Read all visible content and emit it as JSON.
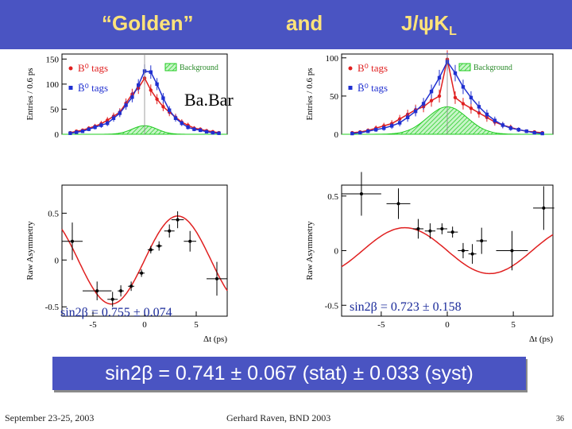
{
  "header": {
    "golden": "“Golden”",
    "and": "and",
    "jpsikl_main": "J/ψK",
    "jpsikl_sub": "L"
  },
  "babar_label": "Ba.Bar",
  "result": "sin2β = 0.741 ± 0.067 (stat) ± 0.033 (syst)",
  "footer": {
    "date": "September 23-25, 2003",
    "author": "Gerhard Raven, BND 2003",
    "page": "36"
  },
  "colors": {
    "header_bg": "#4a54c2",
    "header_text": "#ffe37a",
    "b0": "#e02020",
    "b0bar": "#2030d0",
    "background": "#22cc22"
  },
  "chart_data": [
    {
      "type": "scatter",
      "name": "golden-entries",
      "xlabel": "Δt (ps)",
      "ylabel": "Entries / 0.6 ps",
      "xlim": [
        -8,
        8
      ],
      "ylim": [
        0,
        160
      ],
      "yticks": [
        0,
        50,
        100,
        150
      ],
      "legend": {
        "b0": "B⁰ tags",
        "b0bar": "B̄⁰ tags",
        "background": "Background"
      },
      "series": [
        {
          "name": "B0 tags",
          "x": [
            -7.2,
            -6.6,
            -6.0,
            -5.4,
            -4.8,
            -4.2,
            -3.6,
            -3.0,
            -2.4,
            -1.8,
            -1.2,
            -0.6,
            0.0,
            0.6,
            1.2,
            1.8,
            2.4,
            3.0,
            3.6,
            4.2,
            4.8,
            5.4,
            6.0,
            6.6,
            7.2
          ],
          "y": [
            3,
            6,
            8,
            12,
            16,
            21,
            28,
            36,
            44,
            62,
            80,
            92,
            112,
            88,
            70,
            55,
            44,
            34,
            24,
            18,
            12,
            10,
            7,
            5,
            3
          ]
        },
        {
          "name": "B0bar tags",
          "x": [
            -7.2,
            -6.6,
            -6.0,
            -5.4,
            -4.8,
            -4.2,
            -3.6,
            -3.0,
            -2.4,
            -1.8,
            -1.2,
            -0.6,
            0.0,
            0.6,
            1.2,
            1.8,
            2.4,
            3.0,
            3.6,
            4.2,
            4.8,
            5.4,
            6.0,
            6.6,
            7.2
          ],
          "y": [
            2,
            4,
            6,
            10,
            14,
            18,
            22,
            32,
            42,
            58,
            74,
            98,
            126,
            124,
            100,
            72,
            48,
            32,
            22,
            14,
            10,
            8,
            5,
            3,
            2
          ]
        },
        {
          "name": "Background",
          "peak": 17,
          "width": 1.2
        }
      ]
    },
    {
      "type": "scatter",
      "name": "golden-asymmetry",
      "xlabel": "Δt (ps)",
      "ylabel": "Raw Asymmetry",
      "xlim": [
        -8,
        8
      ],
      "ylim": [
        -0.6,
        0.8
      ],
      "xticks": [
        -5,
        0,
        5
      ],
      "yticks": [
        -0.5,
        0,
        0.5
      ],
      "points": [
        {
          "x": -7.0,
          "y": 0.2,
          "xerr": 1.0,
          "yerr": 0.2
        },
        {
          "x": -4.6,
          "y": -0.33,
          "xerr": 1.4,
          "yerr": 0.1
        },
        {
          "x": -3.1,
          "y": -0.42,
          "xerr": 0.5,
          "yerr": 0.08
        },
        {
          "x": -2.3,
          "y": -0.33,
          "xerr": 0.3,
          "yerr": 0.06
        },
        {
          "x": -1.3,
          "y": -0.28,
          "xerr": 0.3,
          "yerr": 0.05
        },
        {
          "x": -0.3,
          "y": -0.14,
          "xerr": 0.3,
          "yerr": 0.04
        },
        {
          "x": 0.6,
          "y": 0.11,
          "xerr": 0.3,
          "yerr": 0.04
        },
        {
          "x": 1.4,
          "y": 0.15,
          "xerr": 0.3,
          "yerr": 0.05
        },
        {
          "x": 2.4,
          "y": 0.31,
          "xerr": 0.5,
          "yerr": 0.07
        },
        {
          "x": 3.2,
          "y": 0.43,
          "xerr": 0.6,
          "yerr": 0.09
        },
        {
          "x": 4.4,
          "y": 0.2,
          "xerr": 0.6,
          "yerr": 0.11
        },
        {
          "x": 7.0,
          "y": -0.2,
          "xerr": 1.0,
          "yerr": 0.18
        }
      ],
      "fit": {
        "amplitude": 0.47,
        "omega": 0.489
      },
      "annotation": "sin2β = 0.755 ± 0.074"
    },
    {
      "type": "scatter",
      "name": "jpsikl-entries",
      "xlabel": "Δt (ps)",
      "ylabel": "Entries / 0.6 ps",
      "xlim": [
        -8,
        8
      ],
      "ylim": [
        0,
        105
      ],
      "yticks": [
        0,
        50,
        100
      ],
      "legend": {
        "b0": "B⁰ tags",
        "b0bar": "B̄⁰ tags",
        "background": "Background"
      },
      "series": [
        {
          "name": "B0 tags",
          "x": [
            -7.2,
            -6.6,
            -6.0,
            -5.4,
            -4.8,
            -4.2,
            -3.6,
            -3.0,
            -2.4,
            -1.8,
            -1.2,
            -0.6,
            0.0,
            0.6,
            1.2,
            1.8,
            2.4,
            3.0,
            3.6,
            4.2,
            4.8,
            5.4,
            6.0,
            6.6,
            7.2
          ],
          "y": [
            2,
            3,
            5,
            8,
            11,
            14,
            20,
            26,
            32,
            36,
            44,
            50,
            98,
            48,
            40,
            34,
            28,
            22,
            16,
            12,
            9,
            6,
            4,
            3,
            2
          ]
        },
        {
          "name": "B0bar tags",
          "x": [
            -7.2,
            -6.6,
            -6.0,
            -5.4,
            -4.8,
            -4.2,
            -3.6,
            -3.0,
            -2.4,
            -1.8,
            -1.2,
            -0.6,
            0.0,
            0.6,
            1.2,
            1.8,
            2.4,
            3.0,
            3.6,
            4.2,
            4.8,
            5.4,
            6.0,
            6.6,
            7.2
          ],
          "y": [
            1,
            2,
            4,
            6,
            8,
            11,
            15,
            22,
            30,
            40,
            56,
            74,
            95,
            80,
            62,
            48,
            36,
            26,
            18,
            12,
            8,
            6,
            4,
            2,
            1
          ]
        },
        {
          "name": "Background",
          "peak": 36,
          "width": 1.5
        }
      ]
    },
    {
      "type": "scatter",
      "name": "jpsikl-asymmetry",
      "xlabel": "Δt (ps)",
      "ylabel": "Raw Asymmetry",
      "xlim": [
        -8,
        8
      ],
      "ylim": [
        -0.6,
        0.6
      ],
      "xticks": [
        -5,
        0,
        5
      ],
      "yticks": [
        -0.5,
        0,
        0.5
      ],
      "points": [
        {
          "x": -6.5,
          "y": 0.52,
          "xerr": 1.5,
          "yerr": 0.2
        },
        {
          "x": -3.7,
          "y": 0.43,
          "xerr": 0.9,
          "yerr": 0.14
        },
        {
          "x": -2.2,
          "y": 0.2,
          "xerr": 0.4,
          "yerr": 0.09
        },
        {
          "x": -1.3,
          "y": 0.18,
          "xerr": 0.4,
          "yerr": 0.07
        },
        {
          "x": -0.4,
          "y": 0.2,
          "xerr": 0.4,
          "yerr": 0.05
        },
        {
          "x": 0.4,
          "y": 0.17,
          "xerr": 0.4,
          "yerr": 0.05
        },
        {
          "x": 1.2,
          "y": 0.0,
          "xerr": 0.4,
          "yerr": 0.07
        },
        {
          "x": 1.9,
          "y": -0.03,
          "xerr": 0.3,
          "yerr": 0.09
        },
        {
          "x": 2.6,
          "y": 0.09,
          "xerr": 0.4,
          "yerr": 0.12
        },
        {
          "x": 4.9,
          "y": 0.0,
          "xerr": 1.2,
          "yerr": 0.18
        },
        {
          "x": 7.3,
          "y": 0.39,
          "xerr": 0.8,
          "yerr": 0.2
        }
      ],
      "fit": {
        "amplitude": -0.21,
        "omega": 0.489
      },
      "annotation": "sin2β = 0.723 ± 0.158"
    }
  ]
}
